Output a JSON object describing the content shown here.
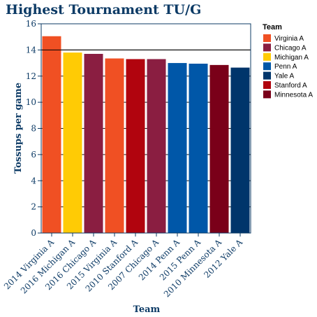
{
  "chart_data": {
    "type": "bar",
    "title": "Highest Tournament TU/G",
    "xlabel": "Team",
    "ylabel": "Tossups per game",
    "ylim": [
      0,
      16
    ],
    "yticks": [
      0,
      2,
      4,
      6,
      8,
      10,
      12,
      14,
      16
    ],
    "grid": true,
    "reference_line": 14,
    "legend_position": "right",
    "legend_title": "Team",
    "categories": [
      "2014 Virginia A",
      "2016 Michigan A",
      "2016 Chicago A",
      "2015 Virginia A",
      "2010 Stanford A",
      "2007 Chicago A",
      "2014 Penn A",
      "2015 Penn A",
      "2010 Minnesota A",
      "2012 Yale A"
    ],
    "teams": [
      "Virginia A",
      "Michigan A",
      "Chicago A",
      "Virginia A",
      "Stanford A",
      "Chicago A",
      "Penn A",
      "Penn A",
      "Minnesota A",
      "Yale A"
    ],
    "values": [
      15.05,
      13.8,
      13.7,
      13.35,
      13.3,
      13.3,
      13.0,
      12.95,
      12.85,
      12.65
    ],
    "legend": [
      {
        "name": "Virginia A",
        "color": "#f05023"
      },
      {
        "name": "Chicago A",
        "color": "#8a1e41"
      },
      {
        "name": "Michigan A",
        "color": "#ffcb05"
      },
      {
        "name": "Penn A",
        "color": "#0057a8"
      },
      {
        "name": "Yale A",
        "color": "#00356b"
      },
      {
        "name": "Stanford A",
        "color": "#b1040e"
      },
      {
        "name": "Minnesota A",
        "color": "#7a0019"
      }
    ]
  }
}
